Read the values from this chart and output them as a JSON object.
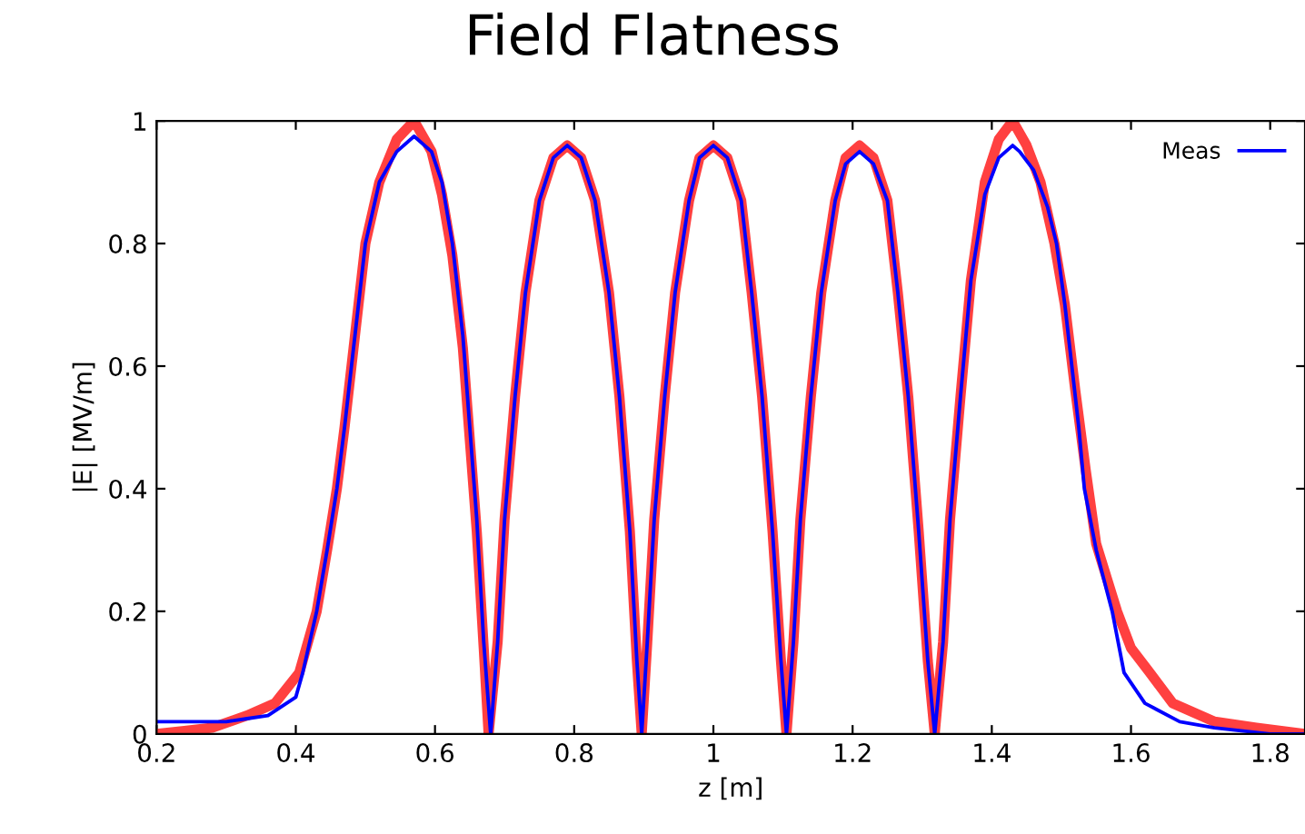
{
  "chart_data": {
    "type": "line",
    "title": "Field Flatness",
    "xlabel": "z [m]",
    "ylabel": "|E| [MV/m]",
    "xlim": [
      0.2,
      1.85
    ],
    "ylim": [
      0,
      1
    ],
    "xticks": [
      0.2,
      0.4,
      0.6,
      0.8,
      {
        "value": 1.0,
        "label": "1"
      },
      1.2,
      1.4,
      1.6,
      1.8
    ],
    "yticks": [
      0,
      0.2,
      0.4,
      0.6,
      0.8,
      1
    ],
    "grid": false,
    "legend": "top right",
    "marker": "none",
    "line_style": "solid",
    "series": [
      {
        "color": "#ff4040",
        "x": [
          0.2,
          0.24,
          0.28,
          0.33,
          0.37,
          0.405,
          0.43,
          0.445,
          0.459,
          0.47,
          0.48,
          0.49,
          0.5,
          0.52,
          0.545,
          0.57,
          0.595,
          0.61,
          0.625,
          0.64,
          0.65,
          0.66,
          0.67,
          0.677,
          0.69,
          0.7,
          0.715,
          0.73,
          0.75,
          0.77,
          0.79,
          0.81,
          0.83,
          0.85,
          0.865,
          0.88,
          0.89,
          0.897,
          0.905,
          0.915,
          0.93,
          0.945,
          0.965,
          0.98,
          1.0,
          1.02,
          1.04,
          1.055,
          1.07,
          1.085,
          1.097,
          1.105,
          1.115,
          1.125,
          1.14,
          1.155,
          1.175,
          1.19,
          1.21,
          1.23,
          1.25,
          1.265,
          1.28,
          1.295,
          1.308,
          1.318,
          1.33,
          1.34,
          1.355,
          1.37,
          1.39,
          1.41,
          1.43,
          1.45,
          1.47,
          1.49,
          1.505,
          1.52,
          1.535,
          1.55,
          1.58,
          1.6,
          1.627,
          1.66,
          1.72,
          1.78,
          1.85
        ],
        "values": [
          0.0,
          0.005,
          0.01,
          0.03,
          0.05,
          0.1,
          0.2,
          0.3,
          0.4,
          0.5,
          0.6,
          0.7,
          0.8,
          0.9,
          0.97,
          1.0,
          0.95,
          0.88,
          0.78,
          0.63,
          0.48,
          0.33,
          0.14,
          0.0,
          0.15,
          0.35,
          0.55,
          0.72,
          0.87,
          0.94,
          0.96,
          0.94,
          0.87,
          0.72,
          0.55,
          0.33,
          0.12,
          0.0,
          0.15,
          0.35,
          0.55,
          0.72,
          0.87,
          0.94,
          0.96,
          0.94,
          0.87,
          0.72,
          0.55,
          0.33,
          0.12,
          0.0,
          0.15,
          0.35,
          0.55,
          0.72,
          0.87,
          0.94,
          0.96,
          0.94,
          0.87,
          0.72,
          0.55,
          0.33,
          0.12,
          0.0,
          0.15,
          0.35,
          0.55,
          0.74,
          0.9,
          0.97,
          1.0,
          0.96,
          0.9,
          0.8,
          0.7,
          0.56,
          0.43,
          0.31,
          0.2,
          0.14,
          0.1,
          0.05,
          0.02,
          0.01,
          0.0
        ]
      },
      {
        "name": "Meas",
        "color": "#0000ff",
        "x": [
          0.2,
          0.25,
          0.3,
          0.33,
          0.36,
          0.4,
          0.41,
          0.43,
          0.445,
          0.459,
          0.47,
          0.48,
          0.49,
          0.5,
          0.52,
          0.545,
          0.57,
          0.595,
          0.61,
          0.625,
          0.64,
          0.65,
          0.66,
          0.67,
          0.68,
          0.69,
          0.7,
          0.715,
          0.73,
          0.75,
          0.77,
          0.79,
          0.81,
          0.83,
          0.85,
          0.865,
          0.88,
          0.89,
          0.897,
          0.905,
          0.915,
          0.93,
          0.945,
          0.965,
          0.98,
          1.0,
          1.02,
          1.04,
          1.055,
          1.07,
          1.085,
          1.097,
          1.105,
          1.115,
          1.125,
          1.14,
          1.155,
          1.175,
          1.19,
          1.21,
          1.23,
          1.25,
          1.265,
          1.28,
          1.295,
          1.308,
          1.318,
          1.33,
          1.34,
          1.355,
          1.37,
          1.39,
          1.41,
          1.43,
          1.44,
          1.46,
          1.48,
          1.493,
          1.505,
          1.515,
          1.525,
          1.533,
          1.55,
          1.573,
          1.59,
          1.62,
          1.67,
          1.72,
          1.8,
          1.85
        ],
        "values": [
          0.02,
          0.02,
          0.02,
          0.025,
          0.03,
          0.06,
          0.1,
          0.2,
          0.3,
          0.4,
          0.5,
          0.6,
          0.7,
          0.8,
          0.9,
          0.95,
          0.975,
          0.95,
          0.9,
          0.8,
          0.65,
          0.5,
          0.35,
          0.15,
          0.0,
          0.15,
          0.35,
          0.55,
          0.72,
          0.87,
          0.94,
          0.96,
          0.94,
          0.87,
          0.72,
          0.55,
          0.33,
          0.12,
          0.0,
          0.15,
          0.35,
          0.55,
          0.72,
          0.87,
          0.94,
          0.96,
          0.94,
          0.87,
          0.72,
          0.55,
          0.33,
          0.12,
          0.0,
          0.15,
          0.35,
          0.55,
          0.72,
          0.87,
          0.93,
          0.95,
          0.93,
          0.87,
          0.72,
          0.55,
          0.33,
          0.12,
          0.0,
          0.15,
          0.35,
          0.55,
          0.74,
          0.88,
          0.94,
          0.96,
          0.95,
          0.92,
          0.86,
          0.8,
          0.7,
          0.6,
          0.5,
          0.4,
          0.3,
          0.2,
          0.1,
          0.05,
          0.02,
          0.01,
          0.0,
          0.0
        ]
      }
    ]
  }
}
